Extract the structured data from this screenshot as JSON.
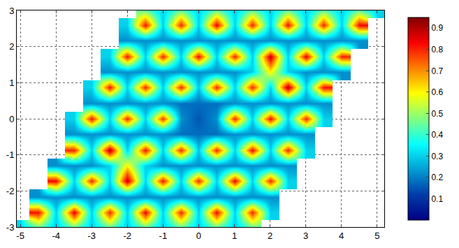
{
  "chart_data": {
    "type": "heatmap",
    "color": "jet",
    "grid": true,
    "x": [
      -5,
      -4.5,
      -4,
      -3.5,
      -3,
      -2.5,
      -2,
      -1.5,
      -1,
      -0.5,
      0,
      0.5,
      1,
      1.5,
      2,
      2.5,
      3,
      3.5,
      4,
      4.5,
      5
    ],
    "y": [
      -3,
      -2.6,
      -2.165,
      -1.73,
      -1.3,
      -0.866,
      -0.433,
      0,
      0.433,
      0.866,
      1.3,
      1.73,
      2.165,
      2.6,
      3
    ],
    "z": [
      [
        0.3,
        0.45,
        0.3,
        0.45,
        0.3,
        0.45,
        0.3,
        0.45,
        0.3,
        0.45,
        0.3,
        0.45,
        0.3,
        0.45,
        null,
        null,
        null,
        null,
        null,
        null,
        null
      ],
      [
        null,
        0.82,
        0.3,
        0.85,
        0.3,
        0.8,
        0.3,
        0.84,
        0.3,
        0.8,
        0.3,
        0.83,
        0.3,
        0.8,
        0.3,
        null,
        null,
        null,
        null,
        null,
        null
      ],
      [
        null,
        0.22,
        0.22,
        0.22,
        0.22,
        0.22,
        0.22,
        0.22,
        0.22,
        0.22,
        0.22,
        0.22,
        0.22,
        0.22,
        0.22,
        null,
        null,
        null,
        null,
        null,
        null
      ],
      [
        null,
        null,
        0.83,
        0.3,
        0.8,
        0.3,
        0.88,
        0.3,
        0.82,
        0.3,
        0.8,
        0.3,
        0.84,
        0.3,
        0.8,
        0.3,
        null,
        null,
        null,
        null,
        null
      ],
      [
        null,
        null,
        0.22,
        0.22,
        0.22,
        0.3,
        0.6,
        0.3,
        0.22,
        0.22,
        0.22,
        0.22,
        0.22,
        0.22,
        0.22,
        0.22,
        null,
        null,
        null,
        null,
        null
      ],
      [
        null,
        null,
        null,
        0.8,
        0.3,
        0.9,
        0.3,
        0.82,
        0.3,
        0.8,
        0.28,
        0.8,
        0.3,
        0.83,
        0.3,
        0.8,
        0.3,
        null,
        null,
        null,
        null
      ],
      [
        null,
        null,
        null,
        0.22,
        0.22,
        0.22,
        0.22,
        0.22,
        0.22,
        0.18,
        0.18,
        0.18,
        0.22,
        0.22,
        0.22,
        0.22,
        0.22,
        null,
        null,
        null,
        null
      ],
      [
        null,
        null,
        null,
        0.3,
        0.82,
        0.3,
        0.8,
        0.3,
        0.78,
        0.22,
        0.15,
        0.22,
        0.8,
        0.3,
        0.83,
        0.3,
        0.8,
        0.3,
        null,
        null,
        null
      ],
      [
        null,
        null,
        null,
        null,
        0.22,
        0.22,
        0.22,
        0.22,
        0.22,
        0.18,
        0.18,
        0.18,
        0.22,
        0.22,
        0.22,
        0.22,
        0.22,
        0.22,
        null,
        null,
        null
      ],
      [
        null,
        null,
        null,
        null,
        0.3,
        0.82,
        0.3,
        0.8,
        0.3,
        0.8,
        0.28,
        0.8,
        0.3,
        0.8,
        0.3,
        0.9,
        0.3,
        0.82,
        null,
        null,
        null
      ],
      [
        null,
        null,
        null,
        null,
        null,
        0.22,
        0.22,
        0.22,
        0.22,
        0.22,
        0.22,
        0.22,
        0.22,
        0.3,
        0.6,
        0.3,
        0.22,
        0.22,
        0.22,
        null,
        null
      ],
      [
        null,
        null,
        null,
        null,
        null,
        0.3,
        0.82,
        0.3,
        0.8,
        0.3,
        0.83,
        0.3,
        0.8,
        0.3,
        0.88,
        0.3,
        0.85,
        0.3,
        0.8,
        null,
        null
      ],
      [
        null,
        null,
        null,
        null,
        null,
        null,
        0.22,
        0.22,
        0.22,
        0.22,
        0.22,
        0.22,
        0.22,
        0.22,
        0.22,
        0.22,
        0.22,
        0.22,
        0.22,
        0.22,
        null
      ],
      [
        null,
        null,
        null,
        null,
        null,
        null,
        0.3,
        0.82,
        0.3,
        0.8,
        0.3,
        0.84,
        0.3,
        0.8,
        0.3,
        0.82,
        0.3,
        0.8,
        0.3,
        0.83,
        null
      ],
      [
        null,
        null,
        null,
        null,
        null,
        null,
        null,
        0.45,
        0.3,
        0.45,
        0.3,
        0.45,
        0.3,
        0.45,
        0.3,
        0.45,
        0.3,
        0.45,
        0.3,
        0.45,
        0.3
      ]
    ],
    "xlim": [
      -5.1,
      5.2
    ],
    "ylim": [
      -3,
      3
    ],
    "xticks": [
      -5,
      -4,
      -3,
      -2,
      -1,
      0,
      1,
      2,
      3,
      4,
      5
    ],
    "yticks": [
      -3,
      -2,
      -1,
      0,
      1,
      2,
      3
    ],
    "colorbar_range": [
      0,
      0.95
    ],
    "colorbar_ticks": [
      0.1,
      0.2,
      0.3,
      0.4,
      0.5,
      0.6,
      0.7,
      0.8,
      0.9
    ]
  }
}
